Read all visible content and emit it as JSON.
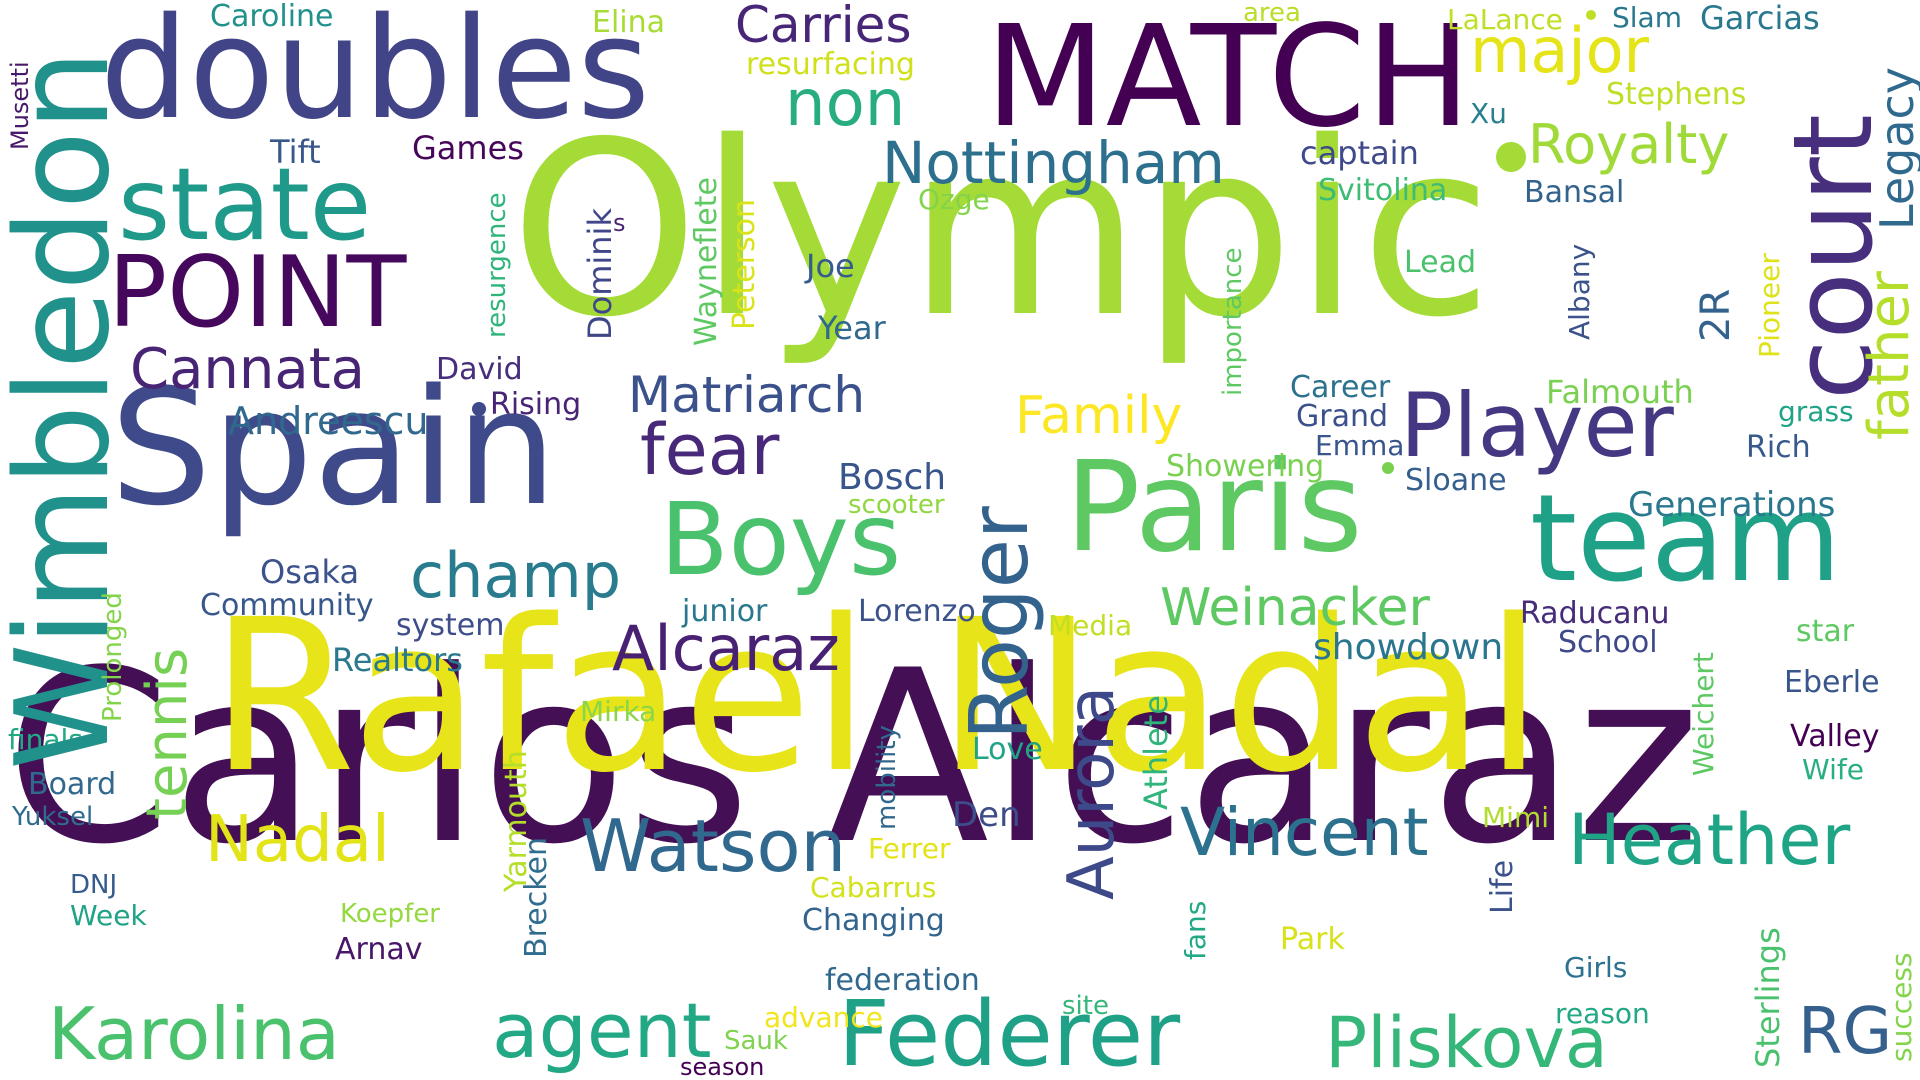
{
  "words": [
    {
      "text": "Olympic",
      "color": "#a5db36"
    },
    {
      "text": "Carlos Alcaraz",
      "color": "#440f54"
    },
    {
      "text": "Rafael Nadal",
      "color": "#e7e419"
    },
    {
      "text": "Spain",
      "color": "#3e4a89"
    },
    {
      "text": "doubles",
      "color": "#414487"
    },
    {
      "text": "MATCH",
      "color": "#440154"
    },
    {
      "text": "Paris",
      "color": "#5ec962"
    },
    {
      "text": "team",
      "color": "#1fa187"
    },
    {
      "text": "Wimbledon",
      "color": "#21918c"
    },
    {
      "text": "state",
      "color": "#1f998a"
    },
    {
      "text": "POINT",
      "color": "#46085c"
    },
    {
      "text": "court",
      "color": "#472f7d"
    },
    {
      "text": "Boys",
      "color": "#4ac16d"
    },
    {
      "text": "Federer",
      "color": "#1fa187"
    },
    {
      "text": "Player",
      "color": "#453781"
    },
    {
      "text": "Roger",
      "color": "#33638d"
    },
    {
      "text": "Karolina",
      "color": "#4ac16d"
    },
    {
      "text": "Pliskova",
      "color": "#35b779"
    },
    {
      "text": "agent",
      "color": "#22a884"
    },
    {
      "text": "Watson",
      "color": "#31688e"
    },
    {
      "text": "Heather",
      "color": "#20a486"
    },
    {
      "text": "Vincent",
      "color": "#2c728e"
    },
    {
      "text": "Alcaraz",
      "color": "#482173"
    },
    {
      "text": "Weinacker",
      "color": "#5ec962"
    },
    {
      "text": "champ",
      "color": "#287c8e"
    },
    {
      "text": "fear",
      "color": "#482878"
    },
    {
      "text": "Cannata",
      "color": "#482475"
    },
    {
      "text": "Nottingham",
      "color": "#2d708e"
    },
    {
      "text": "Matriarch",
      "color": "#3b518b"
    },
    {
      "text": "Aurora",
      "color": "#3e4989"
    },
    {
      "text": "tennis",
      "color": "#75d054"
    },
    {
      "text": "Nadal",
      "color": "#e2e418"
    },
    {
      "text": "RG",
      "color": "#355f8d"
    },
    {
      "text": "major",
      "color": "#e5e419"
    },
    {
      "text": "non",
      "color": "#27ad81"
    },
    {
      "text": "Carries",
      "color": "#482677"
    },
    {
      "text": "Royalty",
      "color": "#a0da39"
    },
    {
      "text": "Family",
      "color": "#fde725"
    },
    {
      "text": "father",
      "color": "#b5de2b"
    },
    {
      "text": "Legacy",
      "color": "#30698e"
    },
    {
      "text": "2R",
      "color": "#33638d"
    },
    {
      "text": "Generations",
      "color": "#2a788e"
    },
    {
      "text": "showdown",
      "color": "#2a768e"
    },
    {
      "text": "Caroline",
      "color": "#21918c"
    },
    {
      "text": "Elina",
      "color": "#a8db34"
    },
    {
      "text": "resurfacing",
      "color": "#d0e11c"
    },
    {
      "text": "area",
      "color": "#b8de29"
    },
    {
      "text": "LaLance",
      "color": "#bddf26"
    },
    {
      "text": "Slam",
      "color": "#2a788e"
    },
    {
      "text": "Garcias",
      "color": "#2a788e"
    },
    {
      "text": "Stephens",
      "color": "#bddf26"
    },
    {
      "text": "Xu",
      "color": "#277f8e"
    },
    {
      "text": "Musetti",
      "color": "#48186a"
    },
    {
      "text": "Tift",
      "color": "#38588c"
    },
    {
      "text": "Games",
      "color": "#46075a"
    },
    {
      "text": "captain",
      "color": "#3e4a89"
    },
    {
      "text": "Svitolina",
      "color": "#3fbc73"
    },
    {
      "text": "Bansal",
      "color": "#33638d"
    },
    {
      "text": "Ozge",
      "color": "#84d44b"
    },
    {
      "text": "resurgence",
      "color": "#2fb47c"
    },
    {
      "text": "Dominik",
      "color": "#3f4788"
    },
    {
      "text": "s",
      "color": "#482475"
    },
    {
      "text": "Wayneflete",
      "color": "#5ec962"
    },
    {
      "text": "Peterson",
      "color": "#dae319"
    },
    {
      "text": "Joe",
      "color": "#365c8d"
    },
    {
      "text": "Year",
      "color": "#31688e"
    },
    {
      "text": "importance",
      "color": "#5ec962"
    },
    {
      "text": "Albany",
      "color": "#3b528b"
    },
    {
      "text": "Lead",
      "color": "#4ac16d"
    },
    {
      "text": "Pioneer",
      "color": "#dde318"
    },
    {
      "text": "David",
      "color": "#472d7b"
    },
    {
      "text": "Rising",
      "color": "#482475"
    },
    {
      "text": "Andreescu",
      "color": "#31688e"
    },
    {
      "text": "Career",
      "color": "#2c728e"
    },
    {
      "text": "Grand",
      "color": "#3b518b"
    },
    {
      "text": "Emma",
      "color": "#39558c"
    },
    {
      "text": "Falmouth",
      "color": "#7ad151"
    },
    {
      "text": "grass",
      "color": "#20a386"
    },
    {
      "text": "Rich",
      "color": "#38598c"
    },
    {
      "text": "Showering",
      "color": "#7ad151"
    },
    {
      "text": "Sloane",
      "color": "#355f8d"
    },
    {
      "text": "Bosch",
      "color": "#39568c"
    },
    {
      "text": "scooter",
      "color": "#90d743"
    },
    {
      "text": "Osaka",
      "color": "#3b528b"
    },
    {
      "text": "Community",
      "color": "#38588c"
    },
    {
      "text": "system",
      "color": "#3d4e8a"
    },
    {
      "text": "junior",
      "color": "#2a788e"
    },
    {
      "text": "Lorenzo",
      "color": "#3b528b"
    },
    {
      "text": "Media",
      "color": "#c2df23"
    },
    {
      "text": "Raducanu",
      "color": "#472c7a"
    },
    {
      "text": "School",
      "color": "#3e4989"
    },
    {
      "text": "star",
      "color": "#5ec962"
    },
    {
      "text": "Prolonged",
      "color": "#84d44b"
    },
    {
      "text": "Realtors",
      "color": "#2a788e"
    },
    {
      "text": "finals",
      "color": "#22a884"
    },
    {
      "text": "Mirka",
      "color": "#8bd646"
    },
    {
      "text": "Weichert",
      "color": "#5ec962"
    },
    {
      "text": "Eberle",
      "color": "#39568c"
    },
    {
      "text": "Valley",
      "color": "#440154"
    },
    {
      "text": "Athlete",
      "color": "#2fb47c"
    },
    {
      "text": "Love",
      "color": "#20a386"
    },
    {
      "text": "Wife",
      "color": "#29af7f"
    },
    {
      "text": "Board",
      "color": "#31688e"
    },
    {
      "text": "Yuksel",
      "color": "#2f6c8e"
    },
    {
      "text": "mobility",
      "color": "#31688e"
    },
    {
      "text": "Den",
      "color": "#3e4c8a"
    },
    {
      "text": "Yarmouth",
      "color": "#b5de2b"
    },
    {
      "text": "Ferrer",
      "color": "#e2e418"
    },
    {
      "text": "Mimi",
      "color": "#b0dd2f"
    },
    {
      "text": "DNJ",
      "color": "#365c8d"
    },
    {
      "text": "Week",
      "color": "#20a386"
    },
    {
      "text": "Koepfer",
      "color": "#95d840"
    },
    {
      "text": "Arnav",
      "color": "#481769"
    },
    {
      "text": "Brecken",
      "color": "#2f6c8e"
    },
    {
      "text": "Cabarrus",
      "color": "#d2e21b"
    },
    {
      "text": "Changing",
      "color": "#32648e"
    },
    {
      "text": "fans",
      "color": "#22a884"
    },
    {
      "text": "Park",
      "color": "#d8e219"
    },
    {
      "text": "Life",
      "color": "#3b528b"
    },
    {
      "text": "Sterlings",
      "color": "#4ac16d"
    },
    {
      "text": "federation",
      "color": "#31688e"
    },
    {
      "text": "Girls",
      "color": "#2c728e"
    },
    {
      "text": "site",
      "color": "#35b779"
    },
    {
      "text": "reason",
      "color": "#22a884"
    },
    {
      "text": "advance",
      "color": "#f1e51d"
    },
    {
      "text": "Sauk",
      "color": "#7fd34e"
    },
    {
      "text": "season",
      "color": "#440154"
    },
    {
      "text": "success",
      "color": "#84d44b"
    }
  ]
}
